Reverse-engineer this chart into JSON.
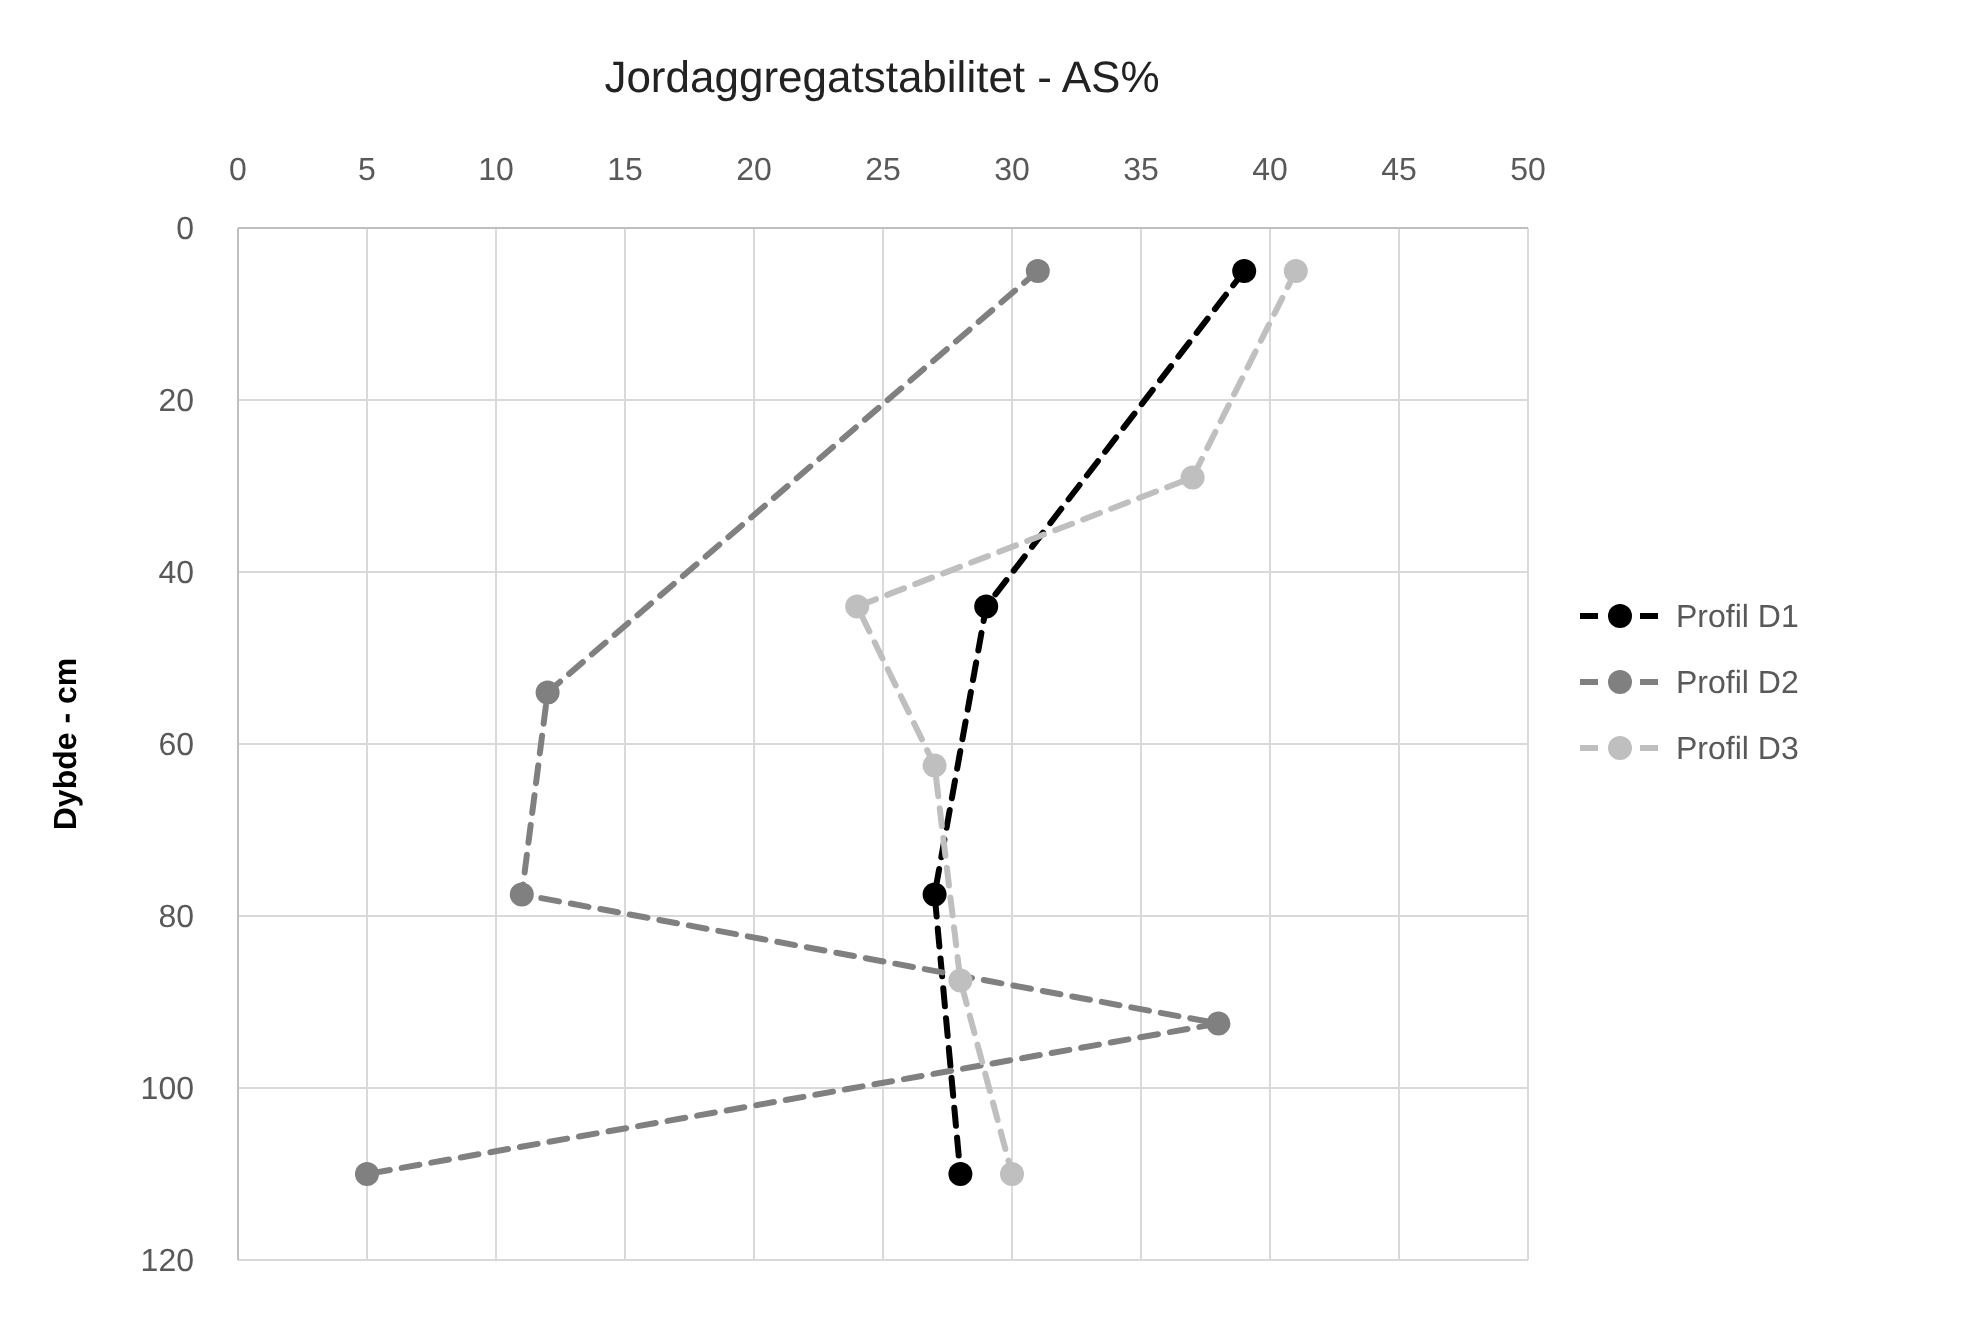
{
  "chart_data": {
    "type": "line",
    "title": "Jordaggregatstabilitet - AS%",
    "ylabel": "Dybde - cm",
    "xlim": [
      0,
      50
    ],
    "xticks": [
      0,
      5,
      10,
      15,
      20,
      25,
      30,
      35,
      40,
      45,
      50
    ],
    "ylim": [
      120,
      0
    ],
    "yticks": [
      0,
      20,
      40,
      60,
      80,
      100,
      120
    ],
    "grid": true,
    "legend": "right",
    "marker": "circle",
    "line_style": "dashed",
    "series": [
      {
        "name": "Profil D1",
        "color": "#000000",
        "x": [
          39,
          29,
          27,
          28
        ],
        "values": [
          5,
          44,
          77.5,
          110
        ]
      },
      {
        "name": "Profil D2",
        "color": "#808080",
        "x": [
          31,
          12,
          11,
          38,
          5
        ],
        "values": [
          5,
          54,
          77.5,
          92.5,
          110
        ]
      },
      {
        "name": "Profil D3",
        "color": "#bfbfbf",
        "x": [
          41,
          37,
          24,
          27,
          28,
          30
        ],
        "values": [
          5,
          29,
          44,
          62.5,
          87.5,
          110
        ]
      }
    ]
  }
}
